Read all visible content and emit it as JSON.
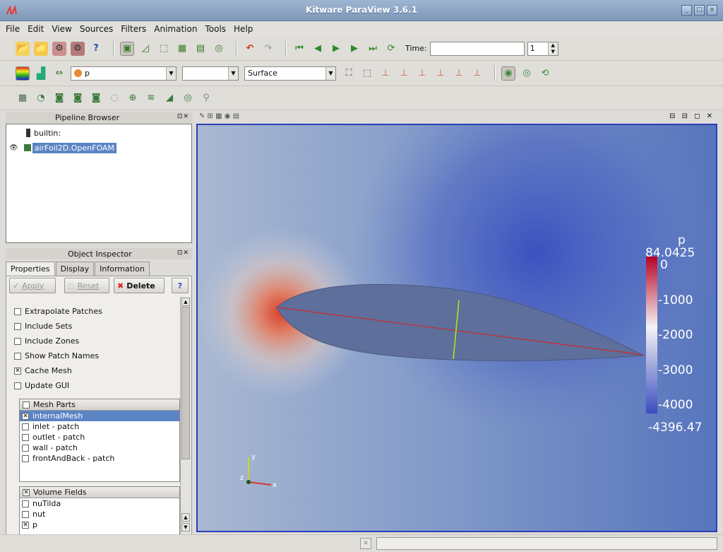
{
  "window": {
    "title": "Kitware ParaView 3.6.1"
  },
  "menu": [
    "File",
    "Edit",
    "View",
    "Sources",
    "Filters",
    "Animation",
    "Tools",
    "Help"
  ],
  "toolbar": {
    "time_label": "Time:",
    "time_value": "",
    "timestep": "1"
  },
  "toolbar2": {
    "color_by": "p",
    "component": "",
    "representation": "Surface"
  },
  "pipeline": {
    "title": "Pipeline Browser",
    "items": [
      "builtin:",
      "airFoil2D.OpenFOAM"
    ]
  },
  "inspector": {
    "title": "Object Inspector",
    "tabs": [
      "Properties",
      "Display",
      "Information"
    ],
    "apply": "Apply",
    "reset": "Reset",
    "delete": "Delete",
    "help": "?",
    "options": [
      {
        "label": "Extrapolate Patches",
        "checked": false
      },
      {
        "label": "Include Sets",
        "checked": false
      },
      {
        "label": "Include Zones",
        "checked": false
      },
      {
        "label": "Show Patch Names",
        "checked": false
      },
      {
        "label": "Cache Mesh",
        "checked": true
      },
      {
        "label": "Update GUI",
        "checked": false
      }
    ],
    "mesh_parts": {
      "header": "Mesh Parts",
      "items": [
        {
          "label": "internalMesh",
          "checked": true
        },
        {
          "label": "inlet - patch",
          "checked": false
        },
        {
          "label": "outlet - patch",
          "checked": false
        },
        {
          "label": "wall - patch",
          "checked": false
        },
        {
          "label": "frontAndBack - patch",
          "checked": false
        }
      ]
    },
    "volume_fields": {
      "header": "Volume Fields",
      "items": [
        {
          "label": "nuTilda",
          "checked": false
        },
        {
          "label": "nut",
          "checked": false
        },
        {
          "label": "p",
          "checked": true
        }
      ]
    }
  },
  "scalar_bar": {
    "title": "p",
    "max": "84.0425",
    "min": "-4396.47",
    "ticks": [
      "0",
      "-1000",
      "-2000",
      "-3000",
      "-4000"
    ]
  },
  "axes": {
    "x": "x",
    "y": "y",
    "z": "z"
  },
  "colors": {
    "accent": "#2b3fb8",
    "high": "#b40426",
    "low": "#3b4cc0"
  }
}
